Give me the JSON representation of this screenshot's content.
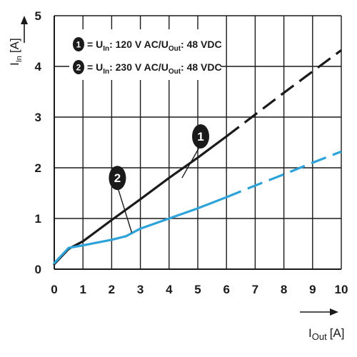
{
  "chart_data": {
    "type": "line",
    "title": "",
    "xlabel": {
      "main": "I",
      "sub": "Out",
      "unit": "[A]"
    },
    "ylabel": {
      "main": "I",
      "sub": "In",
      "unit": "[A]"
    },
    "xlim": [
      0,
      10
    ],
    "ylim": [
      0,
      5
    ],
    "xticks": [
      "0",
      "1",
      "2",
      "3",
      "4",
      "5",
      "6",
      "7",
      "8",
      "9",
      "10"
    ],
    "yticks": [
      "0",
      "1",
      "2",
      "3",
      "4",
      "5"
    ],
    "grid": true,
    "legend_position": "top-left",
    "series": [
      {
        "name": "1",
        "legend": {
          "prefix": "= U",
          "sub1": "In",
          "mid": ": 120 V AC/U",
          "sub2": "Out",
          "suffix": ": 48 VDC"
        },
        "color": "#1a1a1a",
        "x": [
          0,
          0.5,
          1,
          2,
          3,
          4,
          5,
          6,
          7,
          8,
          9,
          10
        ],
        "y": [
          0.1,
          0.4,
          0.55,
          0.97,
          1.38,
          1.8,
          2.2,
          2.62,
          3.05,
          3.48,
          3.9,
          4.32
        ],
        "solid_until_x": 6,
        "callout": {
          "label": "1",
          "x": 5.1,
          "y": 2.62
        }
      },
      {
        "name": "2",
        "legend": {
          "prefix": "= U",
          "sub1": "In",
          "mid": ": 230 V AC/U",
          "sub2": "Out",
          "suffix": ": 48 VDC"
        },
        "color": "#2ea3d9",
        "x": [
          0,
          0.5,
          1,
          2,
          2.5,
          3,
          4,
          5,
          6,
          7,
          8,
          9,
          10
        ],
        "y": [
          0.12,
          0.42,
          0.47,
          0.58,
          0.65,
          0.8,
          1.0,
          1.2,
          1.42,
          1.65,
          1.87,
          2.1,
          2.32
        ],
        "solid_until_x": 6,
        "callout": {
          "label": "2",
          "x": 2.2,
          "y": 1.8
        }
      }
    ]
  }
}
